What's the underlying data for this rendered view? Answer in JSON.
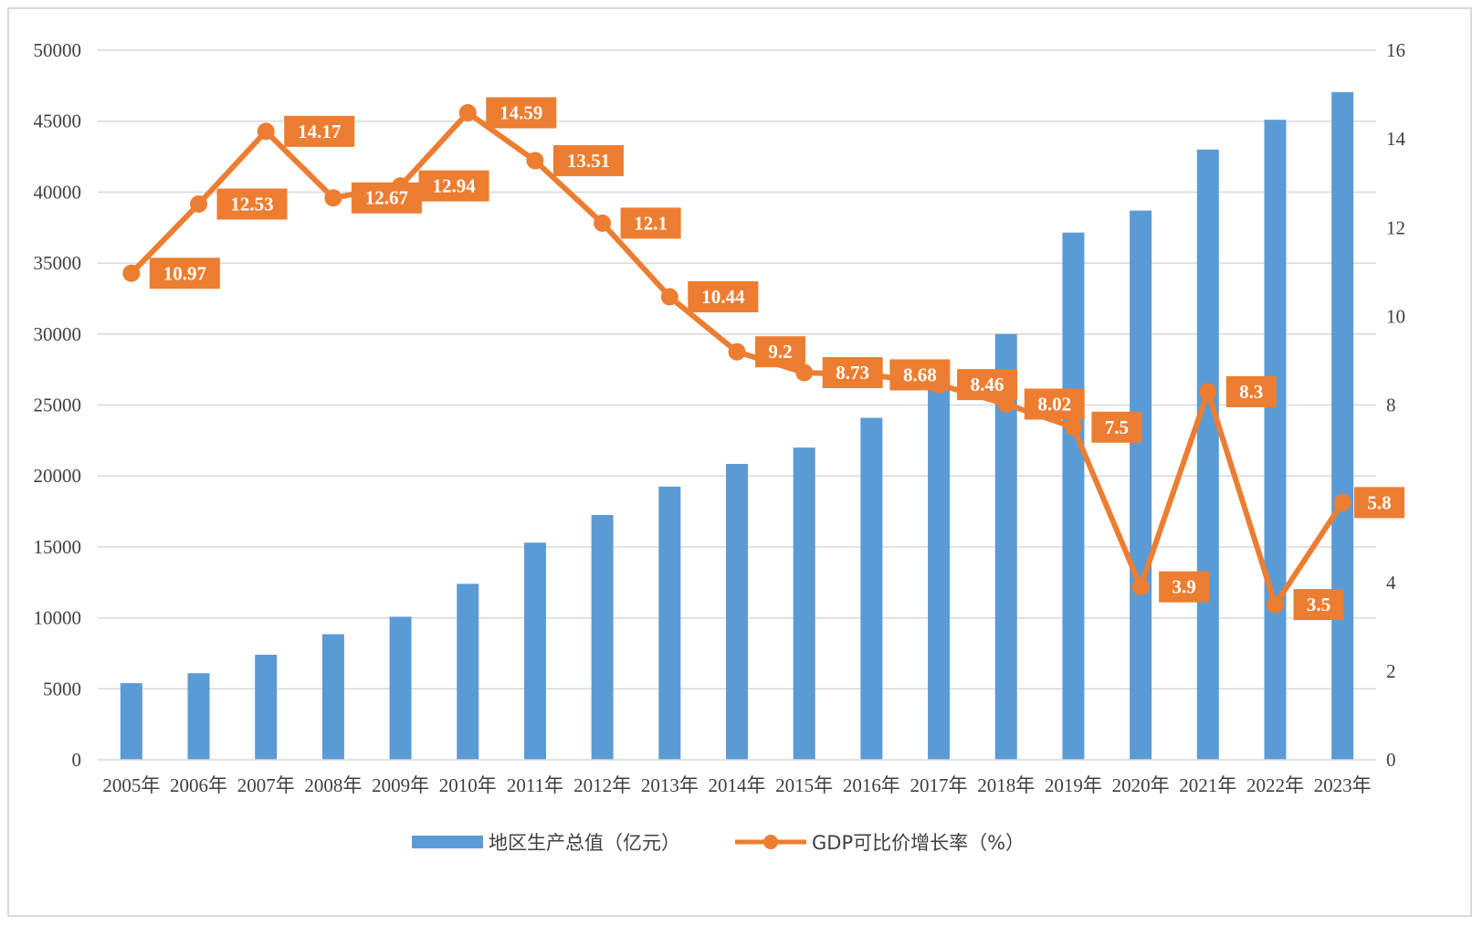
{
  "chart_data": {
    "type": "bar",
    "categories": [
      "2005年",
      "2006年",
      "2007年",
      "2008年",
      "2009年",
      "2010年",
      "2011年",
      "2012年",
      "2013年",
      "2014年",
      "2015年",
      "2016年",
      "2017年",
      "2018年",
      "2019年",
      "2020年",
      "2021年",
      "2022年",
      "2023年"
    ],
    "series": [
      {
        "name": "地区生产总值（亿元）",
        "type": "bar",
        "axis": "left",
        "color": "#5b9bd5",
        "values": [
          5400,
          6100,
          7400,
          8850,
          10080,
          12400,
          15300,
          17250,
          19250,
          20850,
          22000,
          24100,
          27000,
          30000,
          37150,
          38700,
          43000,
          45100,
          47050
        ]
      },
      {
        "name": "GDP可比价增长率（%）",
        "type": "line",
        "axis": "right",
        "color": "#ed7d31",
        "values": [
          10.97,
          12.53,
          14.17,
          12.67,
          12.94,
          14.59,
          13.51,
          12.1,
          10.44,
          9.2,
          8.73,
          8.68,
          8.46,
          8.02,
          7.5,
          3.9,
          8.3,
          3.5,
          5.8
        ],
        "labels": [
          "10.97",
          "12.53",
          "14.17",
          "12.67",
          "12.94",
          "14.59",
          "13.51",
          "12.1",
          "10.44",
          "9.2",
          "8.73",
          "8.68",
          "8.46",
          "8.02",
          "7.5",
          "3.9",
          "8.3",
          "3.5",
          "5.8"
        ]
      }
    ],
    "y_left": {
      "min": 0,
      "max": 50000,
      "step": 5000,
      "ticks": [
        "0",
        "5000",
        "10000",
        "15000",
        "20000",
        "25000",
        "30000",
        "35000",
        "40000",
        "45000",
        "50000"
      ]
    },
    "y_right": {
      "min": 0,
      "max": 16,
      "step": 2,
      "ticks": [
        "0",
        "2",
        "4",
        "6",
        "8",
        "10",
        "12",
        "14",
        "16"
      ]
    },
    "grid": true,
    "legend_position": "bottom",
    "title": "",
    "xlabel": "",
    "ylabel": ""
  }
}
